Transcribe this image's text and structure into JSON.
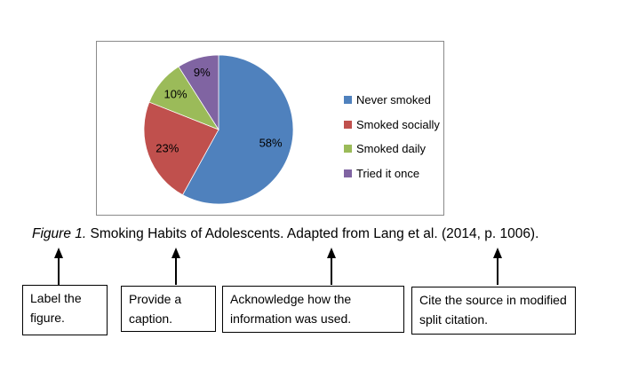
{
  "chart_data": {
    "type": "pie",
    "title": "",
    "categories": [
      "Never smoked",
      "Smoked socially",
      "Smoked daily",
      "Tried it once"
    ],
    "values": [
      58,
      23,
      10,
      9
    ],
    "data_labels": [
      "58%",
      "23%",
      "10%",
      "9%"
    ],
    "colors": [
      "#4F81BD",
      "#C0504D",
      "#9BBB59",
      "#8064A2"
    ],
    "legend_position": "right",
    "start_angle": "top",
    "direction": "clockwise",
    "label_radius_factors": [
      0.72,
      0.73,
      0.75,
      0.8
    ],
    "frame_border_color": "#8a8a8a"
  },
  "caption": {
    "figure_label": "Figure 1.",
    "rest": " Smoking Habits of Adolescents. Adapted from Lang et al. (2014, p. 1006)."
  },
  "callouts": [
    {
      "text": "Label the figure."
    },
    {
      "text": "Provide a caption."
    },
    {
      "text": "Acknowledge how the information was used."
    },
    {
      "text": "Cite the source in modified split citation."
    }
  ]
}
